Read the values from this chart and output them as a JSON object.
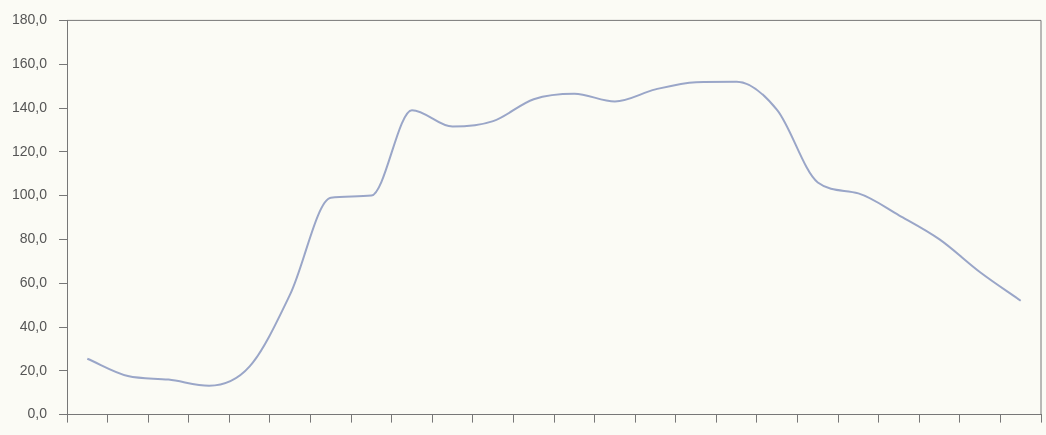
{
  "chart_data": {
    "type": "line",
    "categories": [
      null,
      null,
      null,
      null,
      null,
      null,
      null,
      null,
      null,
      null,
      null,
      null,
      null,
      null,
      null,
      null,
      null,
      null,
      null,
      null,
      null,
      null,
      null,
      null
    ],
    "series": [
      {
        "color": "#9aa6c8",
        "values": [
          25.5,
          17.6,
          16,
          13.2,
          22,
          55,
          99,
          100,
          139,
          131.5,
          134,
          144,
          146.5,
          143,
          148.5,
          151.8,
          152,
          139,
          106,
          101,
          91,
          80,
          65,
          52
        ]
      }
    ],
    "ylim": [
      0,
      180
    ],
    "yticks": [
      {
        "value": 0,
        "label": "0,0"
      },
      {
        "value": 20,
        "label": "20,0"
      },
      {
        "value": 40,
        "label": "40,0"
      },
      {
        "value": 60,
        "label": "60,0"
      },
      {
        "value": 80,
        "label": "80,0"
      },
      {
        "value": 100,
        "label": "100,0"
      },
      {
        "value": 120,
        "label": "120,0"
      },
      {
        "value": 140,
        "label": "140,0"
      },
      {
        "value": 160,
        "label": "160,0"
      },
      {
        "value": 180,
        "label": "180,0"
      }
    ],
    "grid": false,
    "legend": false,
    "marker": "none",
    "line_style": "solid"
  }
}
